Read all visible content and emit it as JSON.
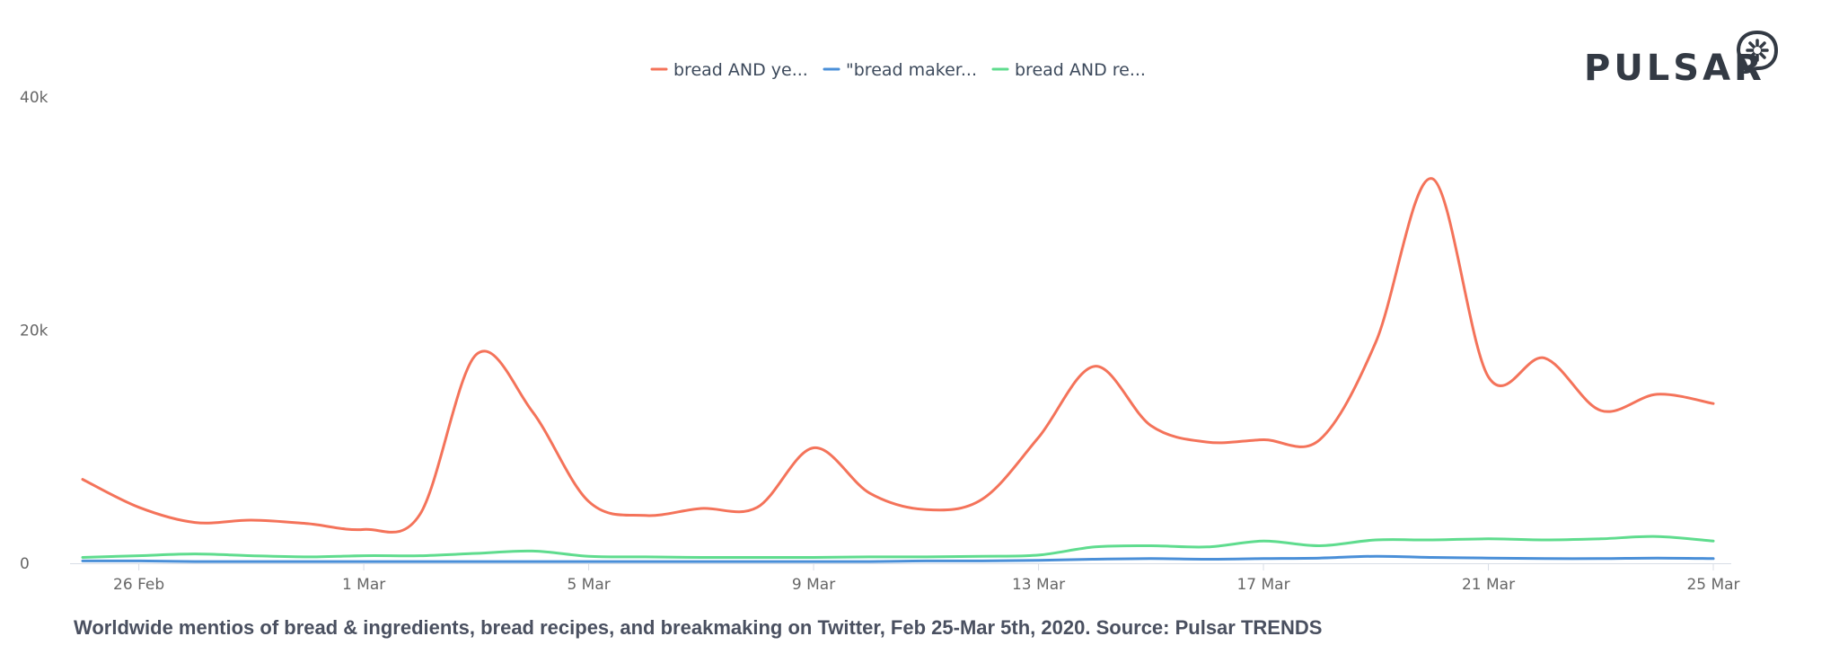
{
  "chart_data": {
    "type": "line",
    "title": "",
    "xlabel": "",
    "ylabel": "",
    "ylim": [
      0,
      40000
    ],
    "yticks": [
      {
        "value": 0,
        "label": "0"
      },
      {
        "value": 20000,
        "label": "20k"
      },
      {
        "value": 40000,
        "label": "40k"
      }
    ],
    "x_range": [
      "2020-02-25",
      "2020-03-25"
    ],
    "xticks": [
      {
        "date": "2020-02-26",
        "label": "26 Feb"
      },
      {
        "date": "2020-03-01",
        "label": "1 Mar"
      },
      {
        "date": "2020-03-05",
        "label": "5 Mar"
      },
      {
        "date": "2020-03-09",
        "label": "9 Mar"
      },
      {
        "date": "2020-03-13",
        "label": "13 Mar"
      },
      {
        "date": "2020-03-17",
        "label": "17 Mar"
      },
      {
        "date": "2020-03-21",
        "label": "21 Mar"
      },
      {
        "date": "2020-03-25",
        "label": "25 Mar"
      }
    ],
    "x": [
      "2020-02-25",
      "2020-02-26",
      "2020-02-27",
      "2020-02-28",
      "2020-02-29",
      "2020-03-01",
      "2020-03-02",
      "2020-03-03",
      "2020-03-04",
      "2020-03-05",
      "2020-03-06",
      "2020-03-07",
      "2020-03-08",
      "2020-03-09",
      "2020-03-10",
      "2020-03-11",
      "2020-03-12",
      "2020-03-13",
      "2020-03-14",
      "2020-03-15",
      "2020-03-16",
      "2020-03-17",
      "2020-03-18",
      "2020-03-19",
      "2020-03-20",
      "2020-03-21",
      "2020-03-22",
      "2020-03-23",
      "2020-03-24",
      "2020-03-25"
    ],
    "series": [
      {
        "name": "bread AND ye...",
        "color": "#f4735a",
        "values": [
          7200,
          4800,
          3500,
          3700,
          3400,
          2900,
          4200,
          17900,
          13000,
          5300,
          4100,
          4700,
          4800,
          9900,
          6000,
          4600,
          5500,
          10800,
          16900,
          11800,
          10400,
          10600,
          10600,
          19000,
          33000,
          16000,
          17600,
          13100,
          14500,
          13700
        ]
      },
      {
        "name": "\"bread maker...",
        "color": "#4a8fd8",
        "values": [
          200,
          200,
          150,
          150,
          150,
          150,
          150,
          150,
          150,
          150,
          150,
          150,
          150,
          150,
          150,
          200,
          200,
          250,
          350,
          400,
          350,
          400,
          450,
          600,
          500,
          450,
          400,
          400,
          450,
          400
        ]
      },
      {
        "name": "bread AND re...",
        "color": "#5fdc8e",
        "values": [
          500,
          650,
          800,
          650,
          550,
          650,
          650,
          850,
          1050,
          600,
          550,
          500,
          500,
          500,
          550,
          550,
          600,
          700,
          1400,
          1500,
          1400,
          1900,
          1500,
          2000,
          2000,
          2100,
          2000,
          2100,
          2300,
          1900
        ]
      }
    ],
    "legend_position": "top-center",
    "grid": false
  },
  "caption": "Worldwide mentios of bread & ingredients, bread recipes, and breakmaking on Twitter, Feb 25-Mar 5th, 2020. Source: Pulsar TRENDS",
  "logo": {
    "text": "PULSAR",
    "icon": "pulsar-star-icon",
    "color": "#333a44"
  }
}
